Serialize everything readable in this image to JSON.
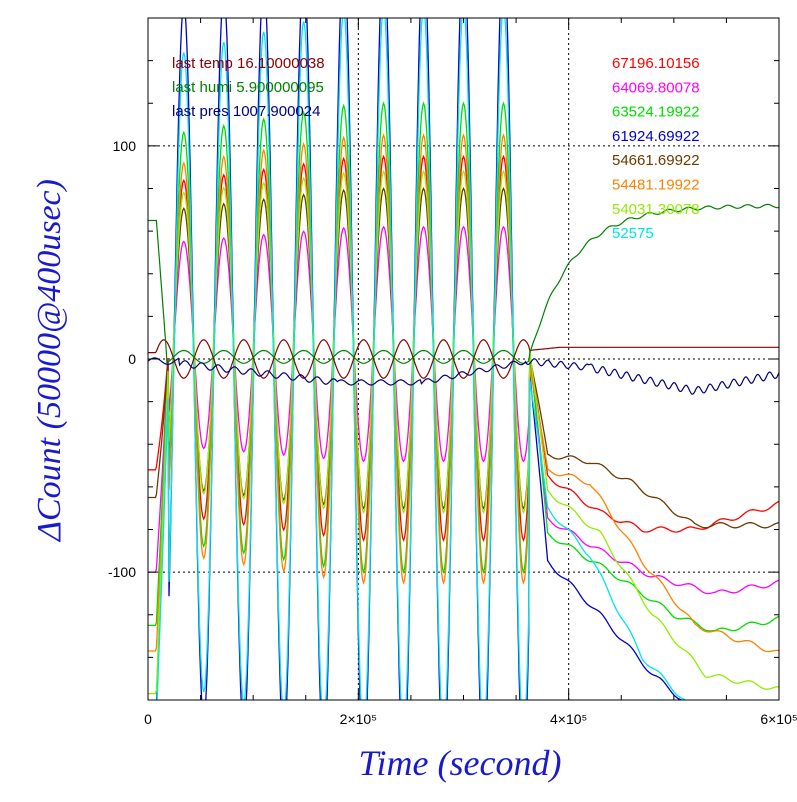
{
  "chart_data": {
    "type": "line",
    "xlabel": "Time (second)",
    "ylabel": "ΔCount (50000@400usec)",
    "xlim": [
      0,
      600000
    ],
    "ylim": [
      -160,
      160
    ],
    "x_ticks": [
      {
        "value": 0,
        "label": "0"
      },
      {
        "value": 200000,
        "label": "2×10⁵"
      },
      {
        "value": 400000,
        "label": "4×10⁵"
      },
      {
        "value": 600000,
        "label": "6×10⁵"
      }
    ],
    "y_ticks": [
      {
        "value": -100,
        "label": "-100"
      },
      {
        "value": 0,
        "label": "0"
      },
      {
        "value": 100,
        "label": "100"
      }
    ],
    "grid": "dotted at major ticks",
    "annotations": [
      {
        "text": "last temp 16.10000038",
        "color": "#8b0000"
      },
      {
        "text": "last humi 5.900000095",
        "color": "#008000"
      },
      {
        "text": "last pres 1007.900024",
        "color": "#000080"
      }
    ],
    "series": [
      {
        "name": "67196.10156",
        "color": "#ff0000",
        "amp": 90,
        "offset": 5,
        "start": -52,
        "final": [
          [
            380000,
            -55
          ],
          [
            430000,
            -72
          ],
          [
            470000,
            -80
          ],
          [
            520000,
            -80
          ],
          [
            600000,
            -68
          ]
        ]
      },
      {
        "name": "64069.80078",
        "color": "#ff00ff",
        "amp": 55,
        "offset": 7,
        "start": -100,
        "final": [
          [
            380000,
            -75
          ],
          [
            430000,
            -90
          ],
          [
            480000,
            -102
          ],
          [
            540000,
            -110
          ],
          [
            600000,
            -105
          ]
        ]
      },
      {
        "name": "63524.19922",
        "color": "#00dd00",
        "amp": 110,
        "offset": 10,
        "start": -125,
        "final": [
          [
            380000,
            -82
          ],
          [
            440000,
            -100
          ],
          [
            500000,
            -120
          ],
          [
            540000,
            -128
          ],
          [
            600000,
            -122
          ]
        ]
      },
      {
        "name": "61924.69922",
        "color": "#0000cc",
        "amp": 190,
        "offset": 0,
        "start": -165,
        "final": [
          [
            380000,
            -95
          ],
          [
            400000,
            -105
          ],
          [
            430000,
            -120
          ],
          [
            480000,
            -148
          ],
          [
            520000,
            -165
          ],
          [
            600000,
            -175
          ]
        ]
      },
      {
        "name": "54661.69922",
        "color": "#6b3a00",
        "amp": 75,
        "offset": 5,
        "start": -65,
        "final": [
          [
            380000,
            -45
          ],
          [
            420000,
            -48
          ],
          [
            460000,
            -58
          ],
          [
            520000,
            -78
          ],
          [
            600000,
            -78
          ]
        ]
      },
      {
        "name": "54481.19922",
        "color": "#ff8000",
        "amp": 105,
        "offset": 0,
        "start": -137,
        "final": [
          [
            380000,
            -52
          ],
          [
            420000,
            -58
          ],
          [
            470000,
            -95
          ],
          [
            520000,
            -125
          ],
          [
            600000,
            -138
          ]
        ]
      },
      {
        "name": "54031.30078",
        "color": "#90ee00",
        "amp": 80,
        "offset": 8,
        "start": -157,
        "final": [
          [
            380000,
            -62
          ],
          [
            430000,
            -82
          ],
          [
            480000,
            -120
          ],
          [
            530000,
            -148
          ],
          [
            600000,
            -155
          ]
        ]
      },
      {
        "name": "52575",
        "color": "#00e5e5",
        "amp": 170,
        "offset": -5,
        "start": -170,
        "final": [
          [
            380000,
            -70
          ],
          [
            420000,
            -92
          ],
          [
            470000,
            -140
          ],
          [
            520000,
            -165
          ],
          [
            600000,
            -175
          ]
        ]
      }
    ],
    "env_series": [
      {
        "key": "temp",
        "color": "#8b0000"
      },
      {
        "key": "humi",
        "color": "#008000"
      },
      {
        "key": "pres",
        "color": "#000080"
      }
    ]
  }
}
